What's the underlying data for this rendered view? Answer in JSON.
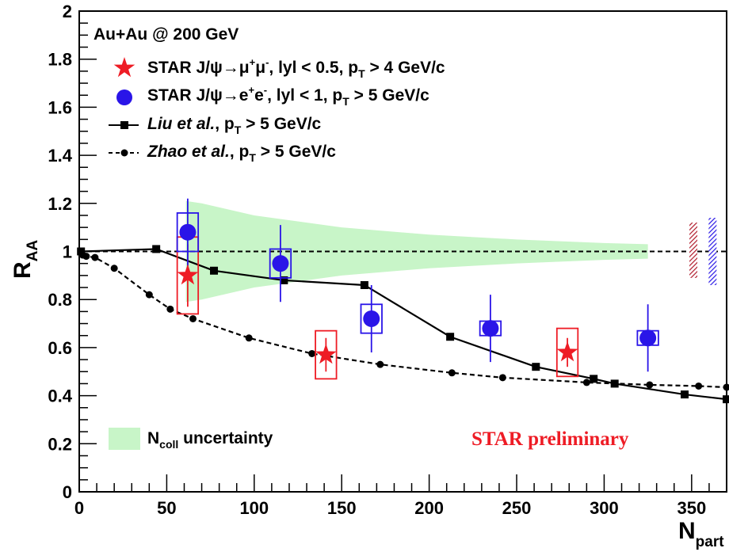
{
  "chart_data": {
    "type": "scatter",
    "title": "",
    "system_label": "Au+Au @ 200 GeV",
    "preliminary_label": "STAR preliminary",
    "xlabel": {
      "main": "N",
      "sub": "part"
    },
    "ylabel": {
      "main": "R",
      "sub": "AA"
    },
    "xlim": [
      0,
      370
    ],
    "ylim": [
      0,
      2
    ],
    "xticks": [
      "0",
      "50",
      "100",
      "150",
      "200",
      "250",
      "300",
      "350"
    ],
    "yticks": [
      "0",
      "0.2",
      "0.4",
      "0.6",
      "0.8",
      "1",
      "1.2",
      "1.4",
      "1.6",
      "1.8",
      "2"
    ],
    "reference_line": 1,
    "legend": {
      "mumu": {
        "a": "STAR J/ψ→μ",
        "sup1": "+",
        "b": "μ",
        "sup2": "-",
        "c": ", lyl < 0.5, p",
        "sub": "T",
        "d": " > 4 GeV/c"
      },
      "ee": {
        "a": "STAR J/ψ→e",
        "sup1": "+",
        "b": "e",
        "sup2": "-",
        "c": ", lyl < 1, p",
        "sub": "T",
        "d": " > 5 GeV/c"
      },
      "liu": {
        "name": "Liu et al.",
        "c": ", p",
        "sub": "T",
        "d": " > 5 GeV/c"
      },
      "zhao": {
        "name": "Zhao et al.",
        "c": ", p",
        "sub": "T",
        "d": " > 5 GeV/c"
      },
      "ncoll": {
        "a": "N",
        "sub": "coll",
        "b": " uncertainty"
      }
    },
    "series": [
      {
        "key": "mumu",
        "color": "#ee1c25",
        "marker": "star",
        "points": [
          {
            "x": 62,
            "y": 0.9,
            "stat": 0.13,
            "syst": 0.16,
            "sx": 6
          },
          {
            "x": 141,
            "y": 0.57,
            "stat": 0.07,
            "syst": 0.1,
            "sx": 6
          },
          {
            "x": 279,
            "y": 0.58,
            "stat": 0.06,
            "syst": 0.1,
            "sx": 6
          }
        ]
      },
      {
        "key": "ee",
        "color": "#2a15e8",
        "marker": "circle",
        "points": [
          {
            "x": 62,
            "y": 1.08,
            "stat": 0.14,
            "syst": 0.08,
            "sx": 6
          },
          {
            "x": 115,
            "y": 0.95,
            "stat": 0.16,
            "syst": 0.06,
            "sx": 6
          },
          {
            "x": 167,
            "y": 0.72,
            "stat": 0.14,
            "syst": 0.06,
            "sx": 6
          },
          {
            "x": 235,
            "y": 0.68,
            "stat": 0.14,
            "syst": 0.03,
            "sx": 6
          },
          {
            "x": 325,
            "y": 0.64,
            "stat": 0.14,
            "syst": 0.03,
            "sx": 6
          }
        ]
      }
    ],
    "models": [
      {
        "key": "liu",
        "style": "solid",
        "marker": "square",
        "x": [
          1,
          44,
          77,
          117,
          163,
          212,
          261,
          294,
          306,
          346,
          370
        ],
        "y": [
          1.0,
          1.01,
          0.92,
          0.88,
          0.86,
          0.645,
          0.52,
          0.47,
          0.45,
          0.405,
          0.385
        ]
      },
      {
        "key": "zhao",
        "style": "dashed",
        "marker": "dot",
        "x": [
          2,
          4,
          9,
          20,
          40,
          52,
          65,
          97,
          133,
          172,
          213,
          242,
          290,
          326,
          354,
          370
        ],
        "y": [
          0.985,
          0.98,
          0.975,
          0.93,
          0.82,
          0.76,
          0.72,
          0.64,
          0.575,
          0.53,
          0.495,
          0.475,
          0.455,
          0.445,
          0.44,
          0.435
        ]
      }
    ],
    "ncoll_band": {
      "color": "#c8f5c8",
      "x": [
        61,
        70,
        100,
        150,
        200,
        250,
        300,
        325
      ],
      "upper": [
        1.21,
        1.2,
        1.15,
        1.1,
        1.07,
        1.05,
        1.035,
        1.03
      ],
      "lower": [
        0.79,
        0.8,
        0.85,
        0.9,
        0.93,
        0.95,
        0.965,
        0.97
      ]
    },
    "global_uncertainty": [
      {
        "color": "#b0192a",
        "x": 351,
        "low": 0.89,
        "high": 1.12
      },
      {
        "color": "#2a18e6",
        "x": 362,
        "low": 0.86,
        "high": 1.14
      }
    ]
  }
}
